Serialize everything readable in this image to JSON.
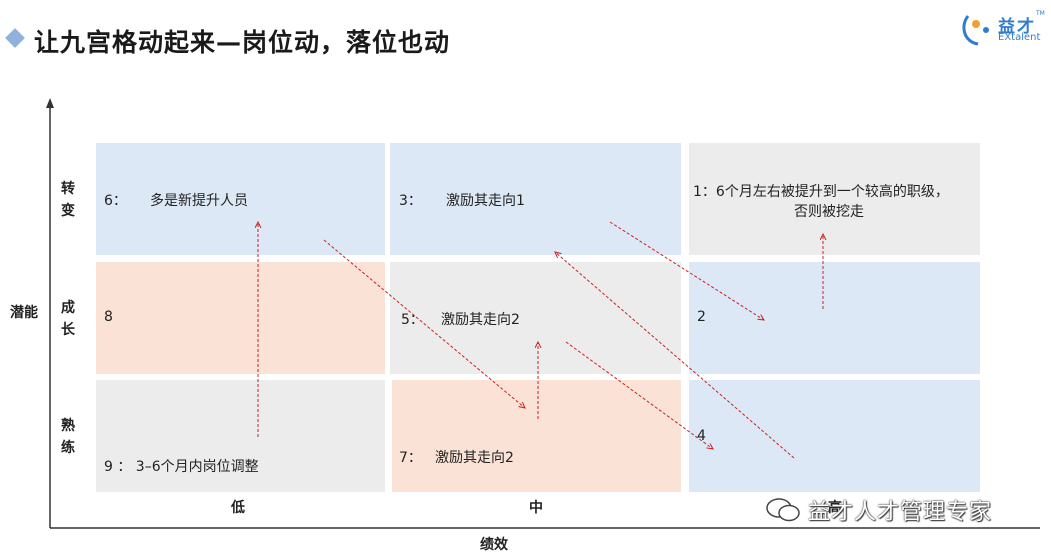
{
  "title": "让九宫格动起来—岗位动，落位也动",
  "logo": {
    "cn": "益才",
    "en": "EXtalent",
    "tm": "TM"
  },
  "axes": {
    "y_label": "潜能",
    "x_label": "绩效",
    "y_rows": [
      {
        "chars": [
          "转",
          "变"
        ]
      },
      {
        "chars": [
          "成",
          "长"
        ]
      },
      {
        "chars": [
          "熟",
          "练"
        ]
      }
    ],
    "x_cols": [
      "低",
      "中",
      "高"
    ]
  },
  "cells": {
    "c6": {
      "num": "6：",
      "text": "多是新提升人员"
    },
    "c3": {
      "num": "3：",
      "text": "激励其走向1"
    },
    "c1": {
      "line1": "1：6个月左右被提升到一个较高的职级，",
      "line2": "否则被挖走"
    },
    "c8": {
      "num": "8"
    },
    "c5": {
      "num": "5：",
      "text": "激励其走向2"
    },
    "c2": {
      "num": "2"
    },
    "c9": {
      "text": "9 ：  3–6个月内岗位调整"
    },
    "c7": {
      "num": "7：",
      "text": "激励其走向2"
    },
    "c4": {
      "num": "4"
    }
  },
  "colors": {
    "blue": "#dce8f5",
    "orange": "#fae3d6",
    "gray": "#ececec",
    "arrow": "#cc2222",
    "accent": "#8fb1dc"
  },
  "watermark": "益才人才管理专家"
}
